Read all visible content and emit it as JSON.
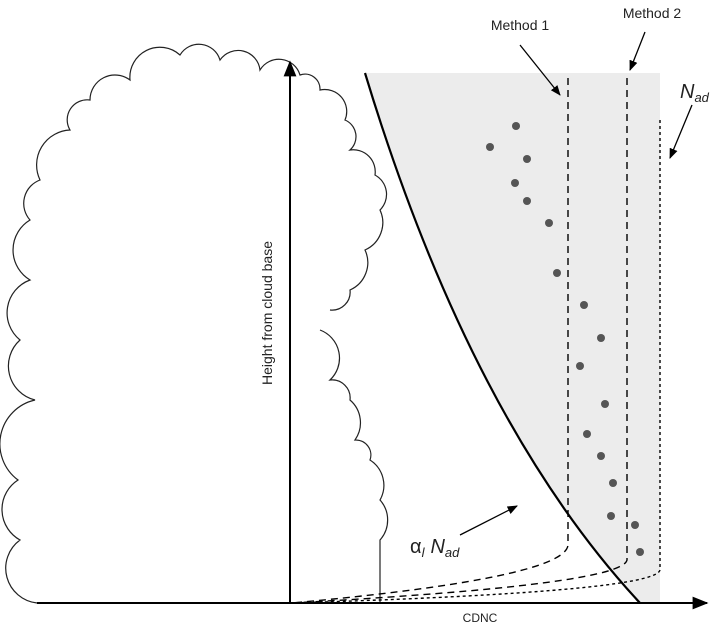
{
  "labels": {
    "method1": "Method 1",
    "method2": "Method 2",
    "nad": {
      "main": "N",
      "sub": "ad"
    },
    "alpha_nad": {
      "alpha": "α",
      "alpha_sub": "l",
      "main": "N",
      "sub": "ad"
    },
    "y_axis": "Height from cloud base",
    "x_axis": "CDNC"
  }
}
